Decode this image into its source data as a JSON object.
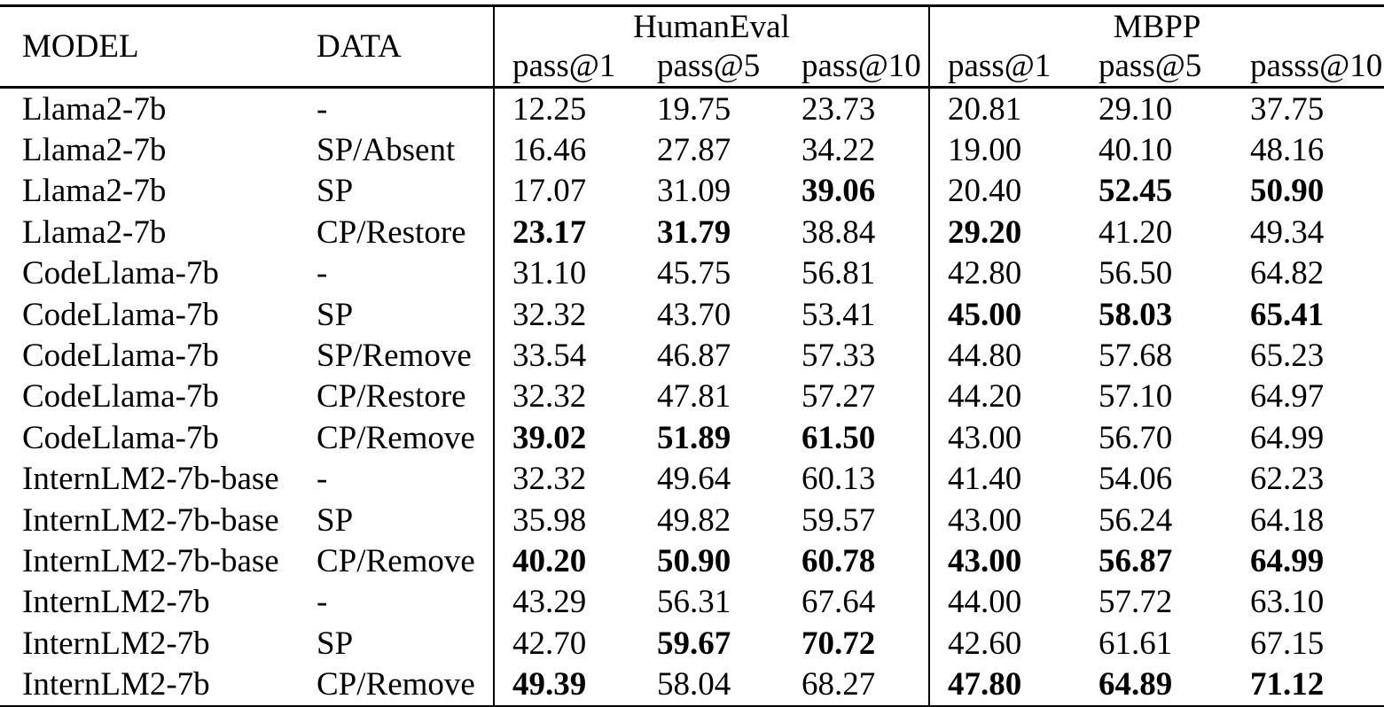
{
  "page": {
    "background": "#ffffff",
    "text_color": "#000000"
  },
  "table": {
    "headers": {
      "model": "MODEL",
      "data": "DATA",
      "groups": [
        {
          "label": "HumanEval",
          "cols": [
            "pass@1",
            "pass@5",
            "pass@10"
          ]
        },
        {
          "label": "MBPP",
          "cols": [
            "pass@1",
            "pass@5",
            "passs@10"
          ]
        }
      ]
    },
    "rows": [
      {
        "model": "Llama2-7b",
        "data": "-",
        "values": [
          "12.25",
          "19.75",
          "23.73",
          "20.81",
          "29.10",
          "37.75"
        ],
        "bold": [
          false,
          false,
          false,
          false,
          false,
          false
        ]
      },
      {
        "model": "Llama2-7b",
        "data": "SP/Absent",
        "values": [
          "16.46",
          "27.87",
          "34.22",
          "19.00",
          "40.10",
          "48.16"
        ],
        "bold": [
          false,
          false,
          false,
          false,
          false,
          false
        ]
      },
      {
        "model": "Llama2-7b",
        "data": "SP",
        "values": [
          "17.07",
          "31.09",
          "39.06",
          "20.40",
          "52.45",
          "50.90"
        ],
        "bold": [
          false,
          false,
          true,
          false,
          true,
          true
        ]
      },
      {
        "model": "Llama2-7b",
        "data": "CP/Restore",
        "values": [
          "23.17",
          "31.79",
          "38.84",
          "29.20",
          "41.20",
          "49.34"
        ],
        "bold": [
          true,
          true,
          false,
          true,
          false,
          false
        ]
      },
      {
        "model": "CodeLlama-7b",
        "data": "-",
        "values": [
          "31.10",
          "45.75",
          "56.81",
          "42.80",
          "56.50",
          "64.82"
        ],
        "bold": [
          false,
          false,
          false,
          false,
          false,
          false
        ]
      },
      {
        "model": "CodeLlama-7b",
        "data": "SP",
        "values": [
          "32.32",
          "43.70",
          "53.41",
          "45.00",
          "58.03",
          "65.41"
        ],
        "bold": [
          false,
          false,
          false,
          true,
          true,
          true
        ]
      },
      {
        "model": "CodeLlama-7b",
        "data": "SP/Remove",
        "values": [
          "33.54",
          "46.87",
          "57.33",
          "44.80",
          "57.68",
          "65.23"
        ],
        "bold": [
          false,
          false,
          false,
          false,
          false,
          false
        ]
      },
      {
        "model": "CodeLlama-7b",
        "data": "CP/Restore",
        "values": [
          "32.32",
          "47.81",
          "57.27",
          "44.20",
          "57.10",
          "64.97"
        ],
        "bold": [
          false,
          false,
          false,
          false,
          false,
          false
        ]
      },
      {
        "model": "CodeLlama-7b",
        "data": "CP/Remove",
        "values": [
          "39.02",
          "51.89",
          "61.50",
          "43.00",
          "56.70",
          "64.99"
        ],
        "bold": [
          true,
          true,
          true,
          false,
          false,
          false
        ]
      },
      {
        "model": "InternLM2-7b-base",
        "data": "-",
        "values": [
          "32.32",
          "49.64",
          "60.13",
          "41.40",
          "54.06",
          "62.23"
        ],
        "bold": [
          false,
          false,
          false,
          false,
          false,
          false
        ]
      },
      {
        "model": "InternLM2-7b-base",
        "data": "SP",
        "values": [
          "35.98",
          "49.82",
          "59.57",
          "43.00",
          "56.24",
          "64.18"
        ],
        "bold": [
          false,
          false,
          false,
          false,
          false,
          false
        ]
      },
      {
        "model": "InternLM2-7b-base",
        "data": "CP/Remove",
        "values": [
          "40.20",
          "50.90",
          "60.78",
          "43.00",
          "56.87",
          "64.99"
        ],
        "bold": [
          true,
          true,
          true,
          true,
          true,
          true
        ]
      },
      {
        "model": "InternLM2-7b",
        "data": "-",
        "values": [
          "43.29",
          "56.31",
          "67.64",
          "44.00",
          "57.72",
          "63.10"
        ],
        "bold": [
          false,
          false,
          false,
          false,
          false,
          false
        ]
      },
      {
        "model": "InternLM2-7b",
        "data": "SP",
        "values": [
          "42.70",
          "59.67",
          "70.72",
          "42.60",
          "61.61",
          "67.15"
        ],
        "bold": [
          false,
          true,
          true,
          false,
          false,
          false
        ]
      },
      {
        "model": "InternLM2-7b",
        "data": "CP/Remove",
        "values": [
          "49.39",
          "58.04",
          "68.27",
          "47.80",
          "64.89",
          "71.12"
        ],
        "bold": [
          true,
          false,
          false,
          true,
          true,
          true
        ]
      }
    ]
  }
}
